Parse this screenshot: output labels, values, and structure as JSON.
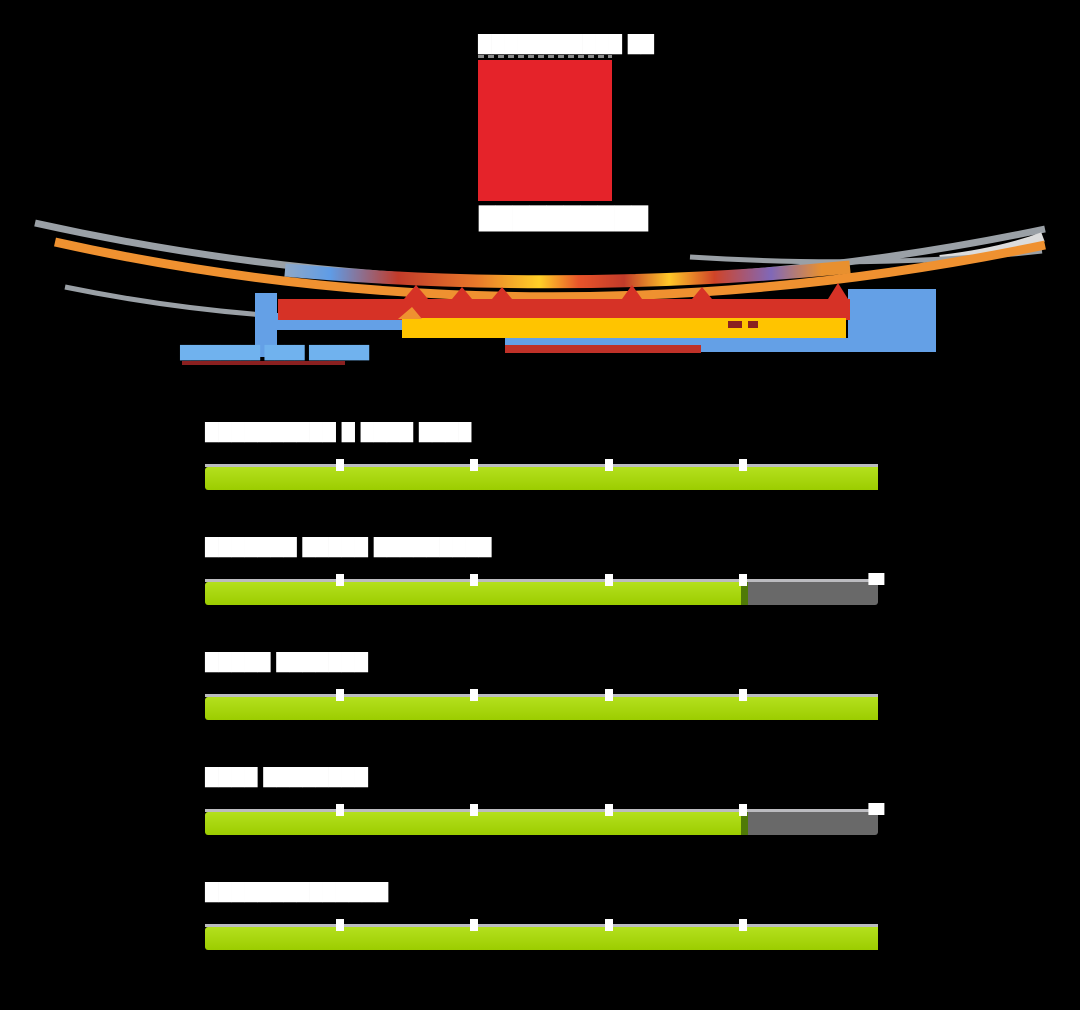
{
  "page": {
    "background": "#000000"
  },
  "hero": {
    "logo_text": "███████████ ██",
    "caption_text": "██████████",
    "watermark_text": "████████ ████ ██████",
    "panel_color": "#e5232a",
    "watermark_color": "#70b2ee",
    "illustration": "stadium-cross-section",
    "illustration_colors": {
      "roof_gray": "#9aa0a6",
      "upper_tier_orange": "#ef9130",
      "seating_red": "#d63226",
      "seating_yellow": "#ffc400",
      "structure_blue": "#64a0e6",
      "base_dark_red": "#8a2020"
    }
  },
  "bars": {
    "fill_color": "#a4d50d",
    "empty_color": "#696969",
    "track_color": "#bcbcc0",
    "divider_color": "#ffffff",
    "seam_color": "#4f7a07"
  },
  "sections": [
    {
      "title": "██████████ █ ████ ████",
      "segments": 5,
      "filled_segments": 5
    },
    {
      "title": "███████ █████ █████████",
      "segments": 5,
      "filled_segments": 4
    },
    {
      "title": "█████ ███████",
      "segments": 5,
      "filled_segments": 5
    },
    {
      "title": "████ ████████",
      "segments": 5,
      "filled_segments": 4
    },
    {
      "title": "██████████████",
      "segments": 5,
      "filled_segments": 5
    }
  ]
}
